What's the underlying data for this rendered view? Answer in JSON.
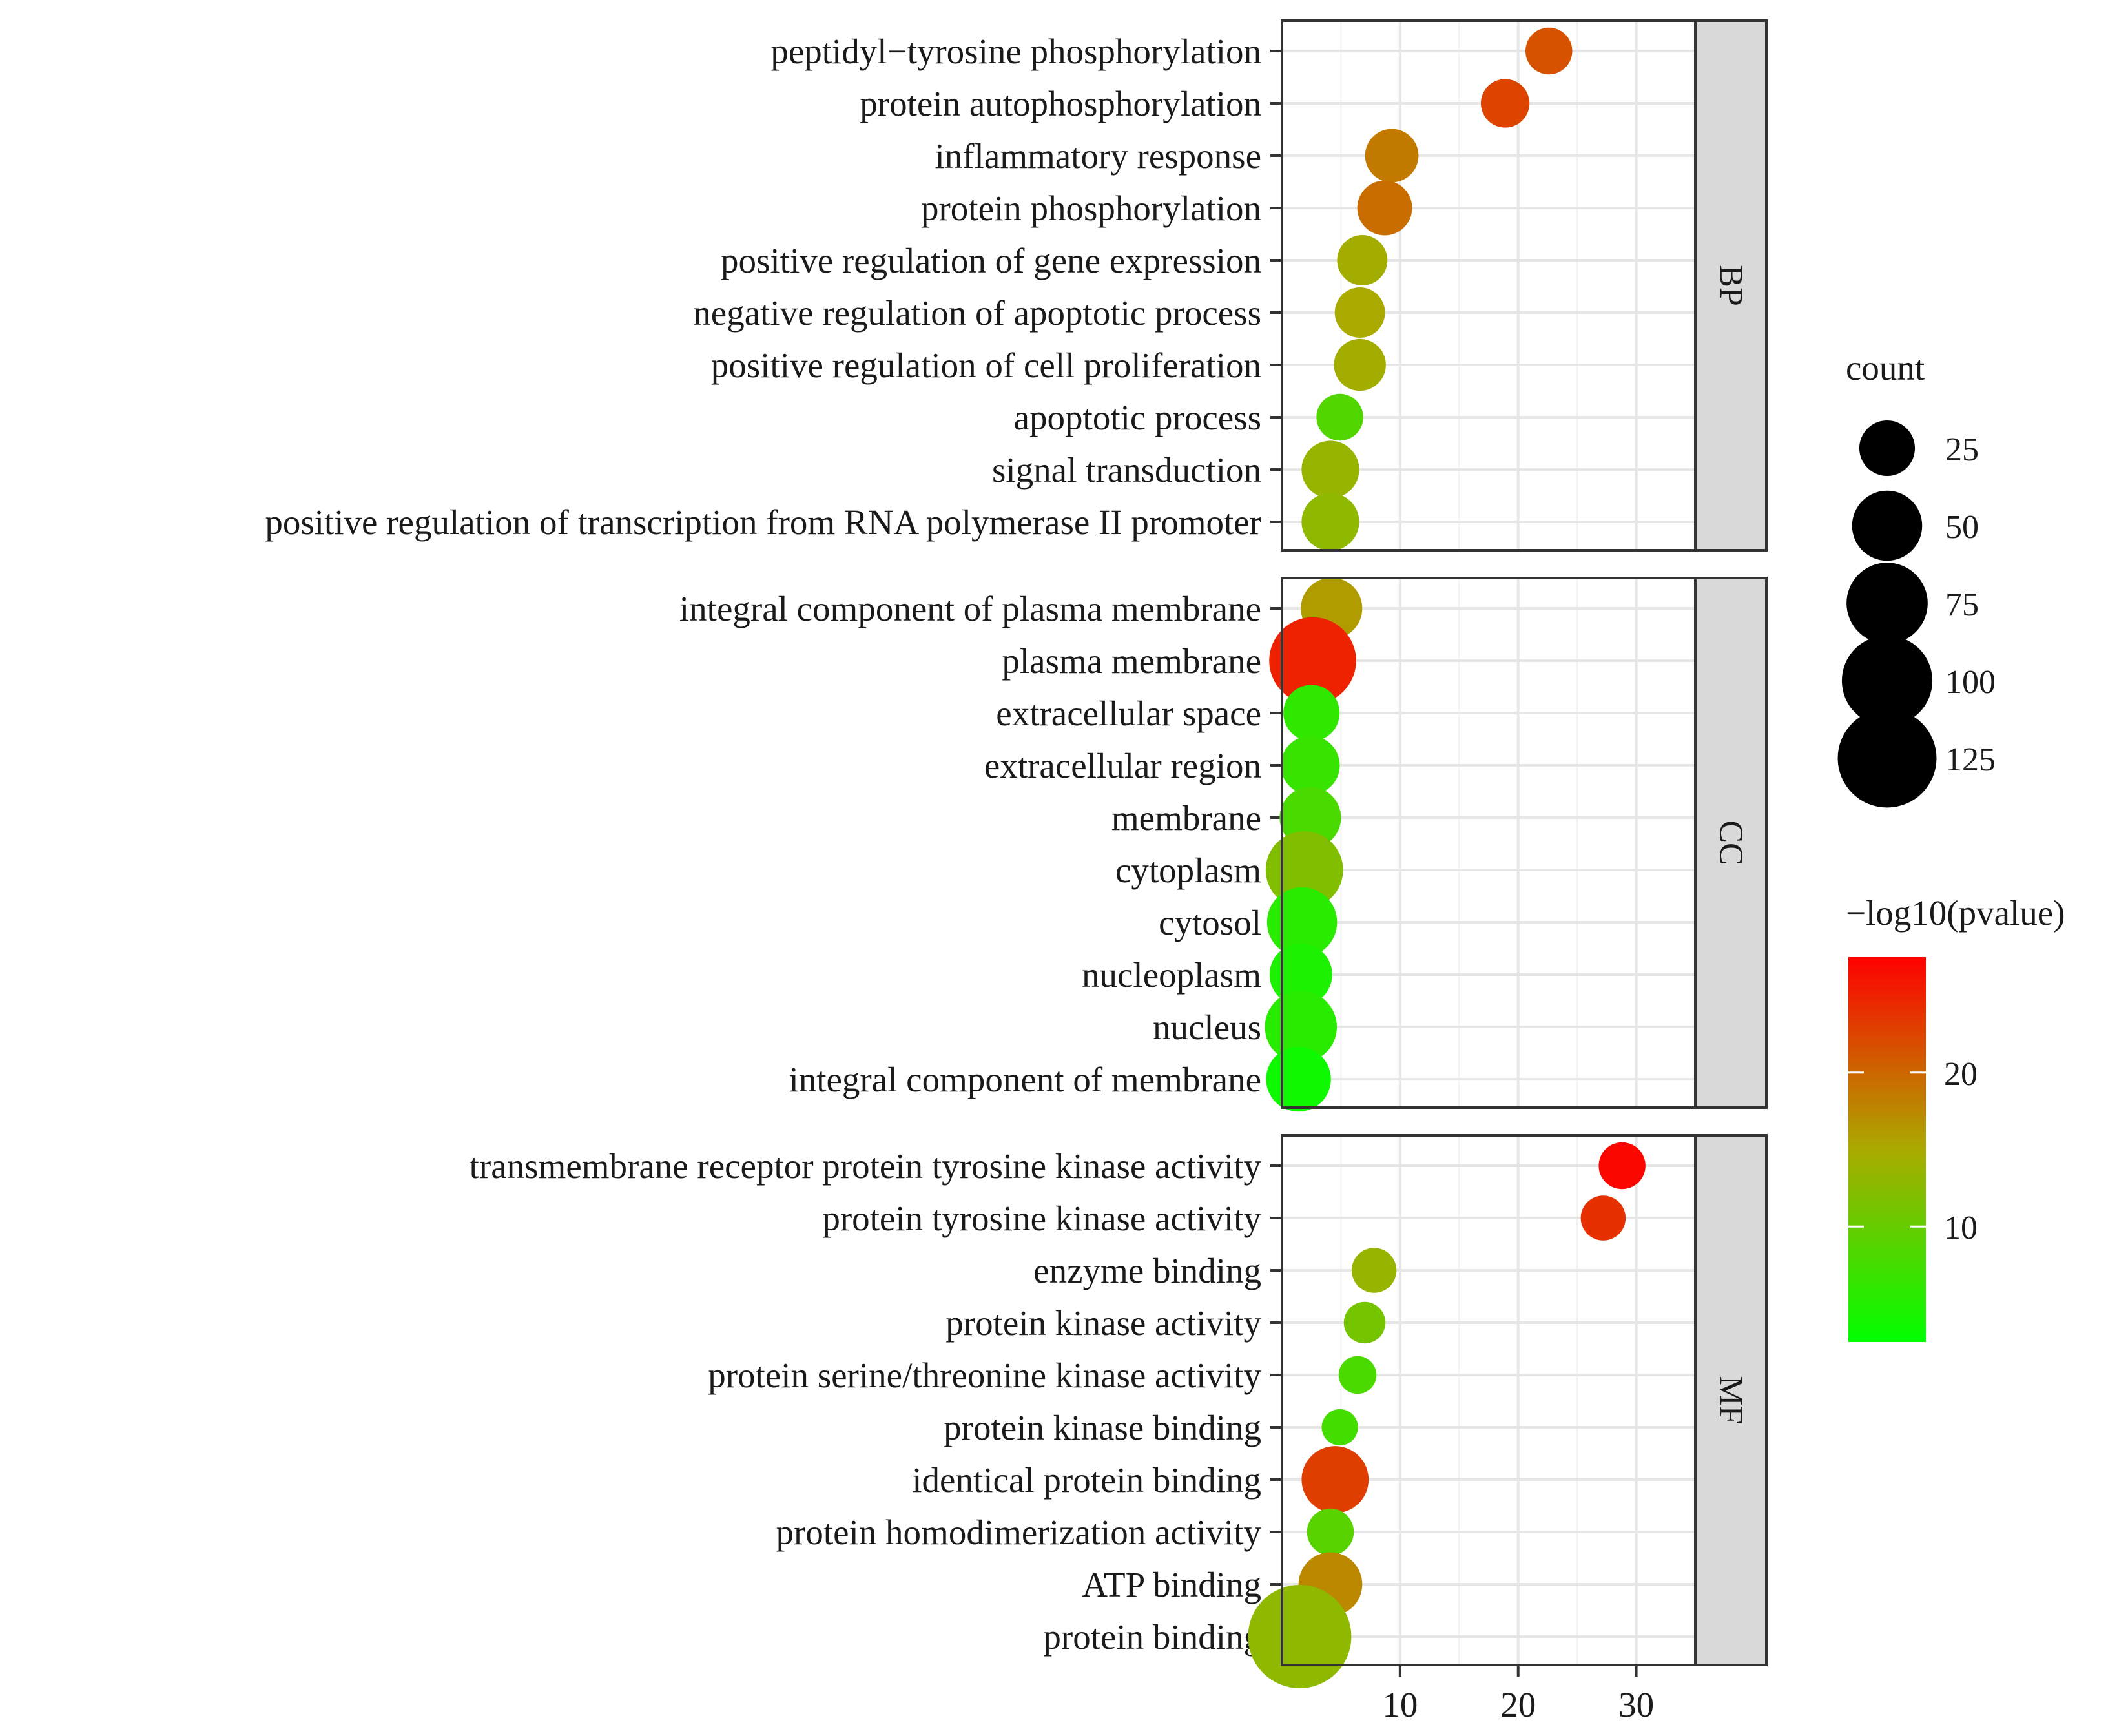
{
  "chart_data": {
    "type": "scatter",
    "title": "",
    "xlabel": "",
    "ylabel": "",
    "xlim": [
      0,
      35
    ],
    "x_ticks": [
      "10",
      "20",
      "30"
    ],
    "x_tick_values": [
      10,
      20,
      30
    ],
    "grid": true,
    "panels": [
      {
        "strip": "BP",
        "terms": [
          {
            "label": "peptidyl−tyrosine phosphorylation",
            "x": 22.6,
            "count": 14,
            "logp": 21.5
          },
          {
            "label": "protein autophosphorylation",
            "x": 18.9,
            "count": 16,
            "logp": 22.5
          },
          {
            "label": "inflammatory response",
            "x": 9.3,
            "count": 22,
            "logp": 18.5
          },
          {
            "label": "protein phosphorylation",
            "x": 8.7,
            "count": 24,
            "logp": 19.5
          },
          {
            "label": "positive regulation of gene expression",
            "x": 6.8,
            "count": 18,
            "logp": 14.5
          },
          {
            "label": "negative regulation of apoptotic process",
            "x": 6.6,
            "count": 18,
            "logp": 15.0
          },
          {
            "label": "positive regulation of cell proliferation",
            "x": 6.6,
            "count": 20,
            "logp": 14.5
          },
          {
            "label": "apoptotic process",
            "x": 4.9,
            "count": 14,
            "logp": 8.5
          },
          {
            "label": "signal transduction",
            "x": 4.1,
            "count": 28,
            "logp": 13.5
          },
          {
            "label": "positive regulation of transcription from RNA polymerase II promoter",
            "x": 4.1,
            "count": 28,
            "logp": 13.0
          }
        ]
      },
      {
        "strip": "CC",
        "terms": [
          {
            "label": "integral component of plasma membrane",
            "x": 4.2,
            "count": 34,
            "logp": 16.0
          },
          {
            "label": "plasma membrane",
            "x": 2.6,
            "count": 90,
            "logp": 25.0
          },
          {
            "label": "extracellular space",
            "x": 2.5,
            "count": 26,
            "logp": 6.0
          },
          {
            "label": "extracellular region",
            "x": 2.4,
            "count": 30,
            "logp": 6.5
          },
          {
            "label": "membrane",
            "x": 2.4,
            "count": 34,
            "logp": 8.0
          },
          {
            "label": "cytoplasm",
            "x": 1.9,
            "count": 66,
            "logp": 12.0
          },
          {
            "label": "cytosol",
            "x": 1.7,
            "count": 50,
            "logp": 5.5
          },
          {
            "label": "nucleoplasm",
            "x": 1.6,
            "count": 36,
            "logp": 4.5
          },
          {
            "label": "nucleus",
            "x": 1.6,
            "count": 54,
            "logp": 5.5
          },
          {
            "label": "integral component of membrane",
            "x": 1.4,
            "count": 40,
            "logp": 3.5
          }
        ]
      },
      {
        "strip": "MF",
        "terms": [
          {
            "label": "transmembrane receptor protein tyrosine kinase activity",
            "x": 28.8,
            "count": 14,
            "logp": 27.0
          },
          {
            "label": "protein tyrosine kinase activity",
            "x": 27.2,
            "count": 12,
            "logp": 24.0
          },
          {
            "label": "enzyme binding",
            "x": 7.8,
            "count": 12,
            "logp": 13.5
          },
          {
            "label": "protein kinase activity",
            "x": 7.0,
            "count": 9,
            "logp": 11.0
          },
          {
            "label": "protein serine/threonine kinase activity",
            "x": 6.4,
            "count": 6,
            "logp": 8.0
          },
          {
            "label": "protein kinase binding",
            "x": 4.9,
            "count": 5,
            "logp": 7.5
          },
          {
            "label": "identical protein binding",
            "x": 4.5,
            "count": 44,
            "logp": 23.0
          },
          {
            "label": "protein homodimerization activity",
            "x": 4.1,
            "count": 14,
            "logp": 9.0
          },
          {
            "label": "ATP binding",
            "x": 4.1,
            "count": 38,
            "logp": 17.5
          },
          {
            "label": "protein binding",
            "x": 1.5,
            "count": 140,
            "logp": 13.0
          }
        ]
      }
    ],
    "legend": {
      "size_title": "count",
      "size_breaks": [
        25,
        50,
        75,
        100,
        125
      ],
      "size_break_labels": [
        "25",
        "50",
        "75",
        "100",
        "125"
      ],
      "color_title": "−log10(pvalue)",
      "color_range": [
        2.5,
        27.5
      ],
      "color_breaks": [
        10,
        20
      ],
      "color_break_labels": [
        "10",
        "20"
      ],
      "colors": {
        "low": "#00ff00",
        "mid": "#aaaa00",
        "high": "#ff0000"
      },
      "position": "right"
    }
  }
}
